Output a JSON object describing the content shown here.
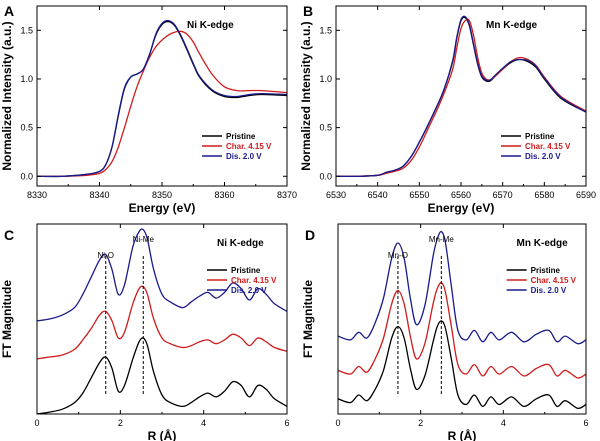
{
  "colors": {
    "pristine": "#000000",
    "charged": "#d01c1c",
    "discharged": "#1a1a8c"
  },
  "chart_data": [
    {
      "panel": "A",
      "type": "line",
      "title": "Ni K-edge",
      "xlabel": "Energy (eV)",
      "ylabel": "Normalized Intensity (a.u.)",
      "xlim": [
        8330,
        8370
      ],
      "ylim": [
        -0.1,
        1.75
      ],
      "xticks": [
        "8330",
        "8340",
        "8350",
        "8360",
        "8370"
      ],
      "yticks": [
        "0.0",
        "0.5",
        "1.0",
        "1.5"
      ],
      "legend_placement": "bottom-right",
      "series": [
        {
          "name": "Pristine",
          "color": "#000000",
          "x": [
            8330,
            8334,
            8338,
            8340,
            8341,
            8342,
            8343,
            8344,
            8345,
            8346,
            8347,
            8348,
            8349,
            8350,
            8351,
            8352,
            8353,
            8354,
            8355,
            8356,
            8358,
            8360,
            8362,
            8364,
            8366,
            8370
          ],
          "y": [
            0.0,
            0.0,
            0.02,
            0.05,
            0.12,
            0.3,
            0.62,
            0.9,
            1.02,
            1.05,
            1.1,
            1.25,
            1.45,
            1.56,
            1.59,
            1.55,
            1.44,
            1.3,
            1.15,
            1.02,
            0.88,
            0.82,
            0.81,
            0.83,
            0.84,
            0.83
          ]
        },
        {
          "name": "Char. 4.15 V",
          "color": "#d01c1c",
          "x": [
            8330,
            8334,
            8338,
            8340,
            8341,
            8342,
            8343,
            8344,
            8345,
            8346,
            8347,
            8348,
            8349,
            8350,
            8351,
            8352,
            8353,
            8354,
            8355,
            8356,
            8358,
            8360,
            8362,
            8364,
            8366,
            8370
          ],
          "y": [
            0.0,
            0.0,
            0.01,
            0.03,
            0.07,
            0.15,
            0.3,
            0.5,
            0.72,
            0.92,
            1.08,
            1.22,
            1.33,
            1.4,
            1.45,
            1.48,
            1.49,
            1.46,
            1.38,
            1.26,
            1.05,
            0.92,
            0.88,
            0.88,
            0.88,
            0.86
          ]
        },
        {
          "name": "Dis. 2.0 V",
          "color": "#1a1a8c",
          "x": [
            8330,
            8334,
            8338,
            8340,
            8341,
            8342,
            8343,
            8344,
            8345,
            8346,
            8347,
            8348,
            8349,
            8350,
            8351,
            8352,
            8353,
            8354,
            8355,
            8356,
            8358,
            8360,
            8362,
            8364,
            8366,
            8370
          ],
          "y": [
            0.0,
            0.0,
            0.02,
            0.05,
            0.12,
            0.3,
            0.63,
            0.91,
            1.02,
            1.05,
            1.1,
            1.25,
            1.46,
            1.57,
            1.6,
            1.56,
            1.45,
            1.31,
            1.16,
            1.03,
            0.89,
            0.83,
            0.82,
            0.84,
            0.85,
            0.84
          ]
        }
      ]
    },
    {
      "panel": "B",
      "type": "line",
      "title": "Mn K-edge",
      "xlabel": "Energy (eV)",
      "ylabel": "Normalized Intensity (a.u.)",
      "xlim": [
        6530,
        6590
      ],
      "ylim": [
        -0.1,
        1.75
      ],
      "xticks": [
        "6530",
        "6540",
        "6550",
        "6560",
        "6570",
        "6580",
        "6590"
      ],
      "yticks": [
        "0.0",
        "0.5",
        "1.0",
        "1.5"
      ],
      "legend_placement": "bottom-right",
      "series": [
        {
          "name": "Pristine",
          "color": "#000000",
          "x": [
            6530,
            6535,
            6540,
            6542,
            6543,
            6544,
            6546,
            6548,
            6550,
            6552,
            6554,
            6556,
            6558,
            6559,
            6560,
            6561,
            6562,
            6563,
            6564,
            6565,
            6566,
            6567,
            6568,
            6570,
            6572,
            6574,
            6576,
            6578,
            6580,
            6584,
            6590
          ],
          "y": [
            0.0,
            0.0,
            0.01,
            0.04,
            0.05,
            0.06,
            0.1,
            0.2,
            0.35,
            0.52,
            0.7,
            0.9,
            1.18,
            1.42,
            1.6,
            1.63,
            1.55,
            1.35,
            1.15,
            1.02,
            0.98,
            0.98,
            1.02,
            1.1,
            1.17,
            1.2,
            1.18,
            1.12,
            1.0,
            0.8,
            0.66
          ]
        },
        {
          "name": "Char. 4.15 V",
          "color": "#d01c1c",
          "x": [
            6530,
            6535,
            6540,
            6542,
            6543,
            6544,
            6546,
            6548,
            6550,
            6552,
            6554,
            6556,
            6558,
            6559,
            6560,
            6561,
            6562,
            6563,
            6564,
            6565,
            6566,
            6567,
            6568,
            6570,
            6572,
            6574,
            6576,
            6578,
            6580,
            6584,
            6590
          ],
          "y": [
            0.0,
            0.0,
            0.01,
            0.03,
            0.04,
            0.05,
            0.08,
            0.16,
            0.3,
            0.48,
            0.66,
            0.86,
            1.1,
            1.32,
            1.52,
            1.6,
            1.6,
            1.45,
            1.22,
            1.06,
            1.0,
            0.99,
            1.02,
            1.1,
            1.18,
            1.22,
            1.2,
            1.14,
            1.02,
            0.82,
            0.67
          ]
        },
        {
          "name": "Dis. 2.0 V",
          "color": "#1a1a8c",
          "x": [
            6530,
            6535,
            6540,
            6542,
            6543,
            6544,
            6546,
            6548,
            6550,
            6552,
            6554,
            6556,
            6558,
            6559,
            6560,
            6561,
            6562,
            6563,
            6564,
            6565,
            6566,
            6567,
            6568,
            6570,
            6572,
            6574,
            6576,
            6578,
            6580,
            6584,
            6590
          ],
          "y": [
            0.0,
            0.0,
            0.01,
            0.04,
            0.05,
            0.06,
            0.1,
            0.2,
            0.35,
            0.52,
            0.7,
            0.9,
            1.19,
            1.43,
            1.61,
            1.64,
            1.56,
            1.36,
            1.16,
            1.03,
            0.99,
            0.99,
            1.03,
            1.11,
            1.18,
            1.2,
            1.19,
            1.13,
            1.01,
            0.81,
            0.66
          ]
        }
      ]
    },
    {
      "panel": "C",
      "type": "line",
      "title": "Ni K-edge",
      "xlabel": "R (Å)",
      "ylabel": "FT Magnitude",
      "xlim": [
        0,
        6
      ],
      "ylim": [
        0,
        10
      ],
      "xticks": [
        "0",
        "2",
        "4",
        "6"
      ],
      "yticks": [],
      "legend_placement": "top-right",
      "annotations": [
        {
          "text": "Ni-O",
          "x": 1.65
        },
        {
          "text": "Ni-Me",
          "x": 2.55
        }
      ],
      "series": [
        {
          "name": "Pristine",
          "color": "#000000",
          "x": [
            0,
            0.3,
            0.6,
            0.9,
            1.1,
            1.3,
            1.5,
            1.65,
            1.8,
            1.95,
            2.1,
            2.3,
            2.45,
            2.55,
            2.65,
            2.8,
            3.0,
            3.2,
            3.5,
            3.7,
            3.9,
            4.1,
            4.3,
            4.5,
            4.7,
            4.9,
            5.1,
            5.3,
            5.5,
            5.7,
            6.0
          ],
          "y": [
            0.0,
            0.1,
            0.25,
            0.6,
            1.1,
            1.9,
            2.7,
            3.0,
            2.4,
            1.2,
            1.5,
            2.9,
            3.8,
            4.0,
            3.6,
            2.2,
            1.0,
            0.6,
            0.4,
            0.6,
            0.9,
            1.1,
            0.9,
            1.2,
            1.7,
            1.5,
            0.9,
            1.5,
            1.3,
            0.8,
            0.4
          ]
        },
        {
          "name": "Char. 4.15 V",
          "color": "#d01c1c",
          "x": [
            0,
            0.3,
            0.6,
            0.9,
            1.1,
            1.3,
            1.5,
            1.65,
            1.8,
            1.95,
            2.1,
            2.3,
            2.45,
            2.55,
            2.65,
            2.8,
            3.0,
            3.2,
            3.5,
            3.7,
            3.9,
            4.1,
            4.3,
            4.5,
            4.7,
            4.9,
            5.1,
            5.3,
            5.5,
            5.7,
            6.0
          ],
          "y": [
            2.9,
            3.0,
            3.1,
            3.4,
            3.9,
            4.5,
            5.2,
            5.4,
            4.9,
            4.0,
            4.3,
            5.8,
            6.6,
            6.7,
            6.3,
            5.0,
            4.0,
            3.7,
            3.5,
            3.6,
            3.8,
            3.9,
            3.7,
            3.9,
            4.2,
            4.0,
            3.6,
            4.0,
            3.8,
            3.5,
            3.3
          ]
        },
        {
          "name": "Dis. 2.0 V",
          "color": "#1a1a8c",
          "x": [
            0,
            0.3,
            0.6,
            0.9,
            1.1,
            1.3,
            1.5,
            1.65,
            1.8,
            1.95,
            2.1,
            2.3,
            2.45,
            2.55,
            2.65,
            2.8,
            3.0,
            3.2,
            3.5,
            3.7,
            3.9,
            4.1,
            4.3,
            4.5,
            4.7,
            4.9,
            5.1,
            5.3,
            5.5,
            5.7,
            6.0
          ],
          "y": [
            4.9,
            5.0,
            5.2,
            5.6,
            6.3,
            7.2,
            8.1,
            8.4,
            7.6,
            6.3,
            6.8,
            8.8,
            9.6,
            9.7,
            9.2,
            7.6,
            6.3,
            5.9,
            5.6,
            5.9,
            6.2,
            6.4,
            6.1,
            6.4,
            6.9,
            6.6,
            6.0,
            6.6,
            6.3,
            5.8,
            5.4
          ]
        }
      ]
    },
    {
      "panel": "D",
      "type": "line",
      "title": "Mn K-edge",
      "xlabel": "R (Å)",
      "ylabel": "FT Magnitude",
      "xlim": [
        0,
        6
      ],
      "ylim": [
        0,
        10
      ],
      "xticks": [
        "0",
        "2",
        "4",
        "6"
      ],
      "yticks": [],
      "legend_placement": "top-right",
      "annotations": [
        {
          "text": "Mn-O",
          "x": 1.45
        },
        {
          "text": "Mn-Me",
          "x": 2.5
        }
      ],
      "series": [
        {
          "name": "Pristine",
          "color": "#000000",
          "x": [
            0,
            0.3,
            0.5,
            0.7,
            0.9,
            1.1,
            1.3,
            1.45,
            1.6,
            1.75,
            1.9,
            2.1,
            2.3,
            2.4,
            2.5,
            2.6,
            2.75,
            2.9,
            3.1,
            3.3,
            3.5,
            3.7,
            3.9,
            4.2,
            4.5,
            4.8,
            5.1,
            5.3,
            5.5,
            5.8,
            6.0
          ],
          "y": [
            0.8,
            0.6,
            1.0,
            0.7,
            1.3,
            2.3,
            4.0,
            4.6,
            4.0,
            2.4,
            1.3,
            2.0,
            3.8,
            4.6,
            4.9,
            4.5,
            2.8,
            1.0,
            0.5,
            1.0,
            0.4,
            0.9,
            0.5,
            0.9,
            0.4,
            0.8,
            1.0,
            0.4,
            0.7,
            0.3,
            0.5
          ]
        },
        {
          "name": "Char. 4.15 V",
          "color": "#d01c1c",
          "x": [
            0,
            0.3,
            0.5,
            0.7,
            0.9,
            1.1,
            1.3,
            1.45,
            1.6,
            1.75,
            1.9,
            2.1,
            2.3,
            2.4,
            2.5,
            2.6,
            2.75,
            2.9,
            3.1,
            3.3,
            3.5,
            3.7,
            3.9,
            4.2,
            4.5,
            4.8,
            5.1,
            5.3,
            5.5,
            5.8,
            6.0
          ],
          "y": [
            2.3,
            2.1,
            2.5,
            2.2,
            2.9,
            4.0,
            5.8,
            6.5,
            5.8,
            4.1,
            2.9,
            3.7,
            5.8,
            6.6,
            6.9,
            6.4,
            4.5,
            2.6,
            2.1,
            2.6,
            2.0,
            2.5,
            2.1,
            2.5,
            2.0,
            2.4,
            2.6,
            2.0,
            2.3,
            1.9,
            2.1
          ]
        },
        {
          "name": "Dis. 2.0 V",
          "color": "#1a1a8c",
          "x": [
            0,
            0.3,
            0.5,
            0.7,
            0.9,
            1.1,
            1.3,
            1.45,
            1.6,
            1.75,
            1.9,
            2.1,
            2.3,
            2.4,
            2.5,
            2.6,
            2.75,
            2.9,
            3.1,
            3.3,
            3.5,
            3.7,
            3.9,
            4.2,
            4.5,
            4.8,
            5.1,
            5.3,
            5.5,
            5.8,
            6.0
          ],
          "y": [
            4.1,
            3.9,
            4.3,
            4.0,
            4.8,
            6.1,
            8.2,
            9.0,
            8.2,
            6.1,
            4.7,
            5.7,
            8.3,
            9.2,
            9.6,
            9.0,
            6.6,
            4.4,
            3.9,
            4.4,
            3.8,
            4.3,
            3.9,
            4.3,
            3.8,
            4.2,
            4.4,
            3.8,
            4.1,
            3.7,
            3.9
          ]
        }
      ]
    }
  ]
}
